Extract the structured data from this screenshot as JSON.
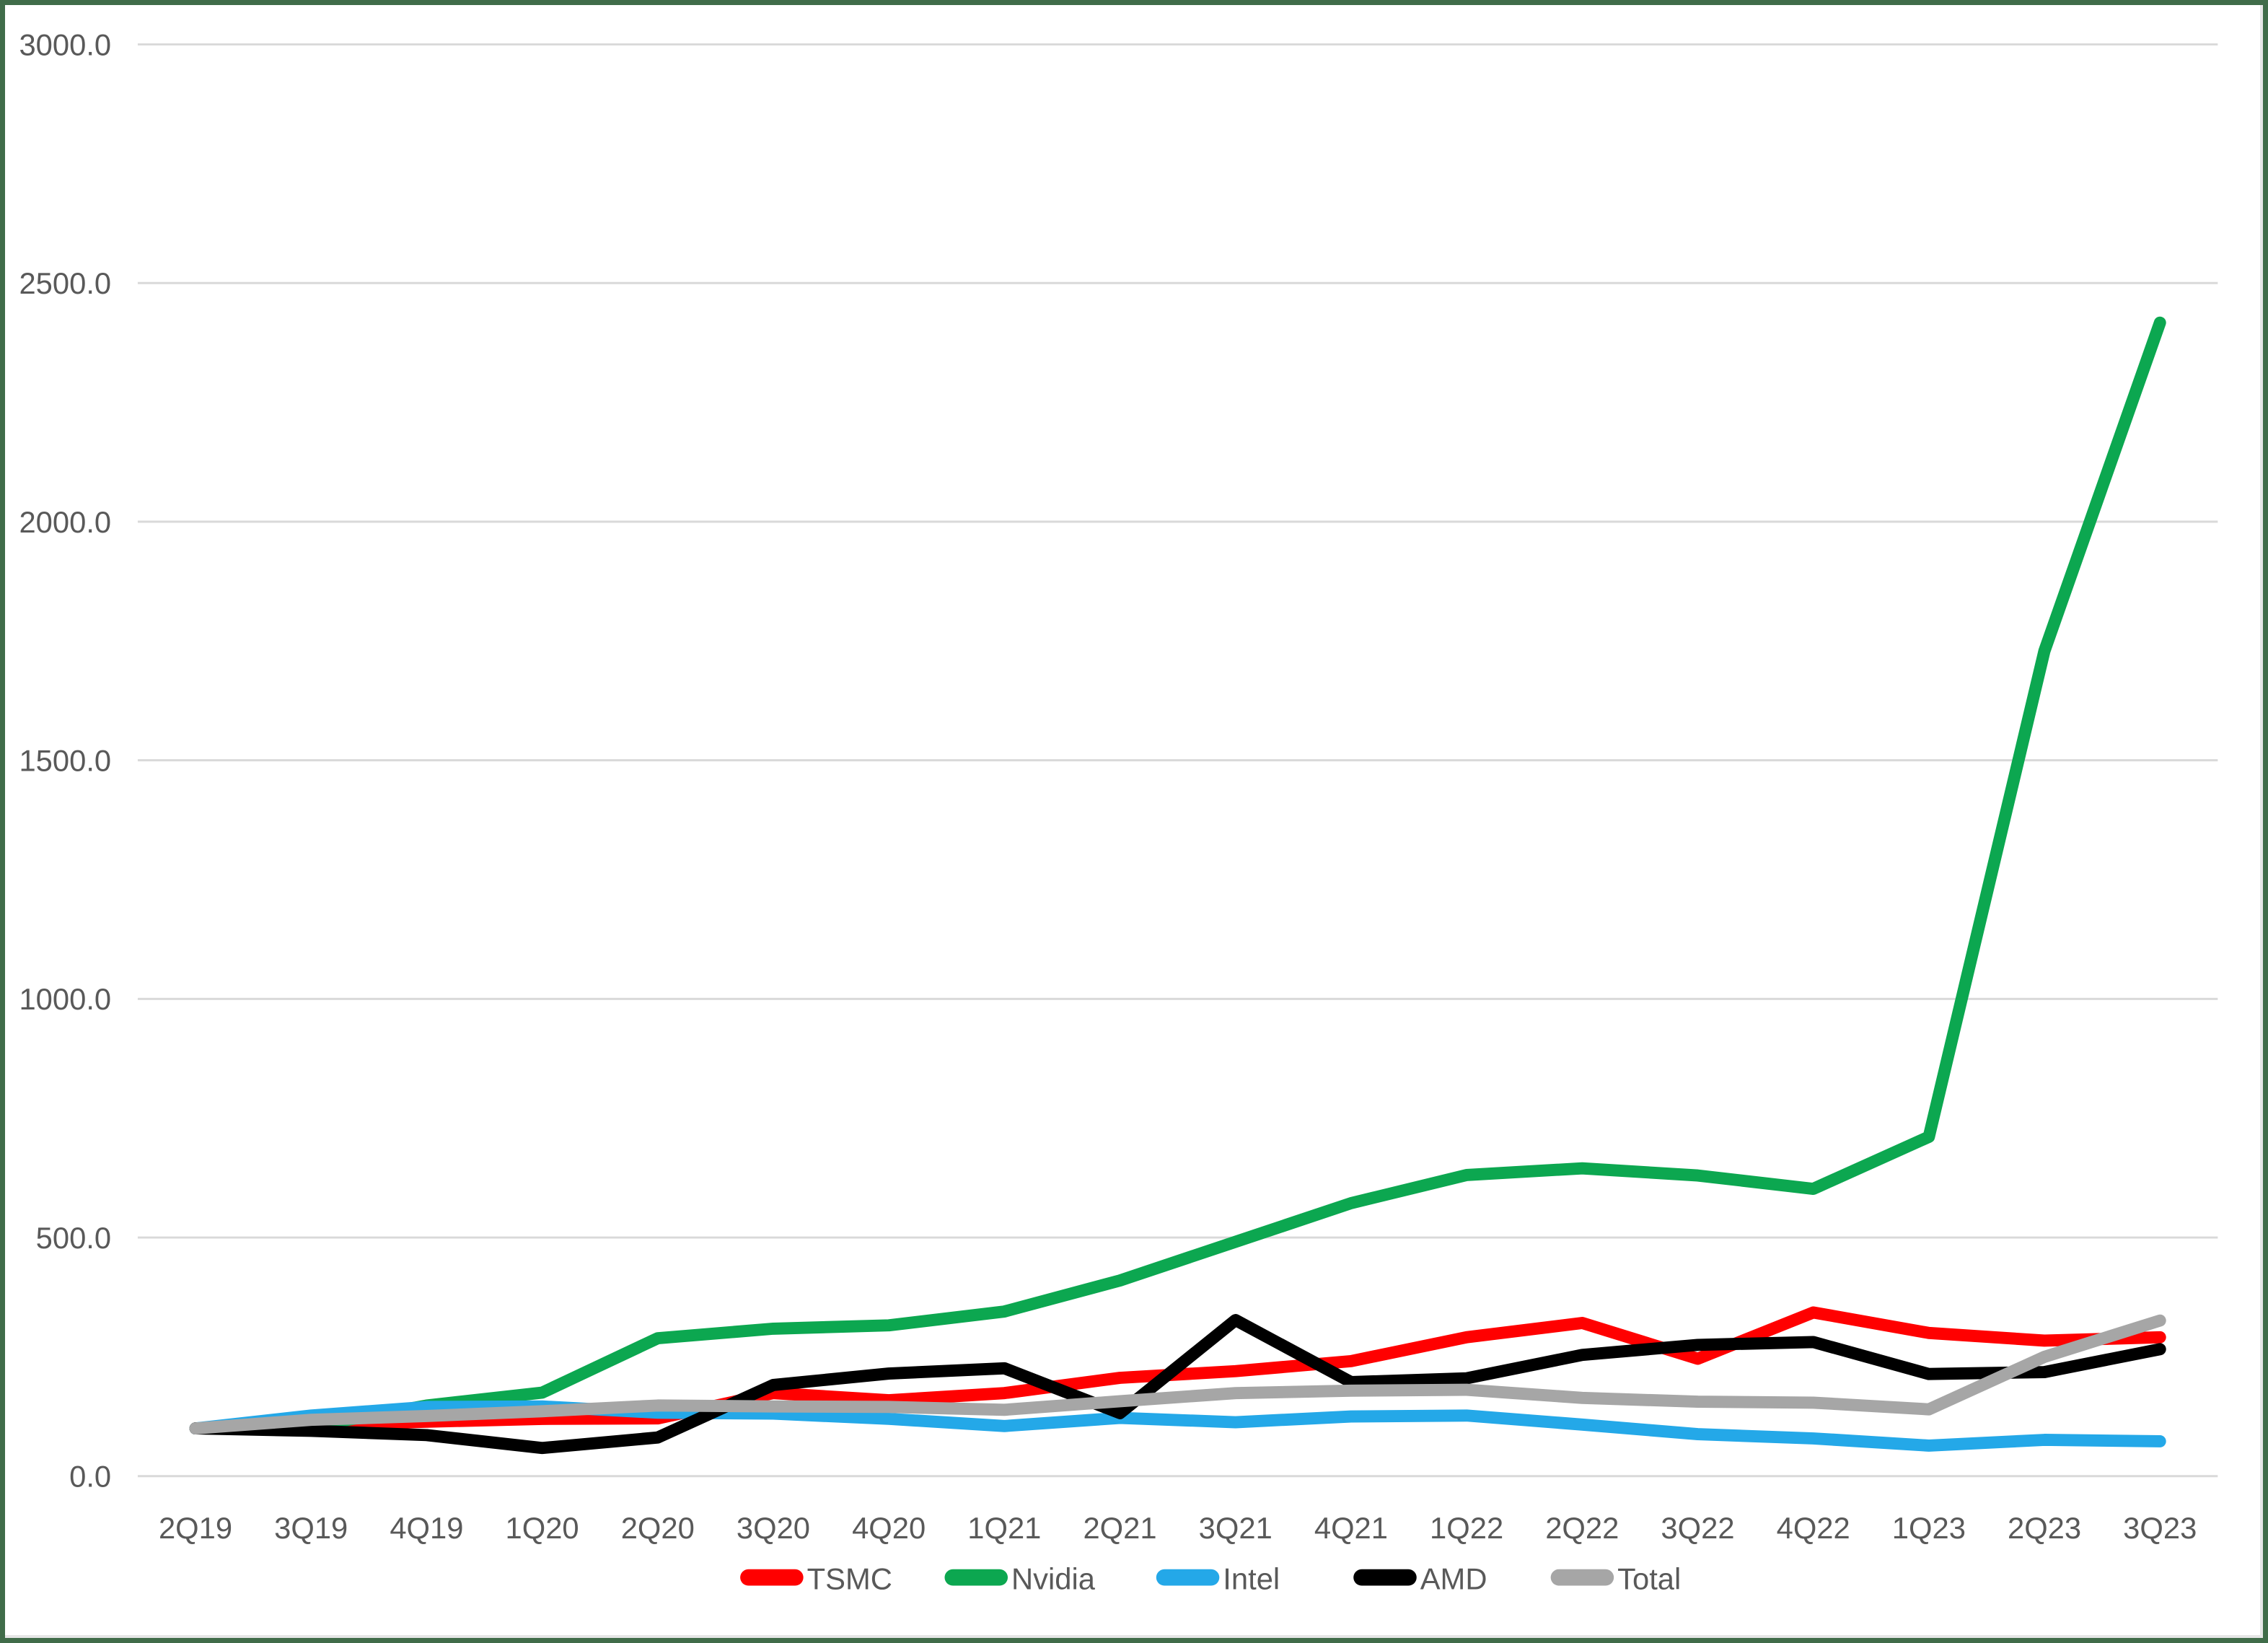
{
  "chart_data": {
    "type": "line",
    "title": "",
    "xlabel": "",
    "ylabel": "",
    "categories": [
      "2Q19",
      "3Q19",
      "4Q19",
      "1Q20",
      "2Q20",
      "3Q20",
      "4Q20",
      "1Q21",
      "2Q21",
      "3Q21",
      "4Q21",
      "1Q22",
      "2Q22",
      "3Q22",
      "4Q22",
      "1Q23",
      "2Q23",
      "3Q23"
    ],
    "series": [
      {
        "name": "TSMC",
        "color": "#FF0000",
        "values": [
          100,
          107,
          114,
          120,
          121,
          174,
          159,
          174,
          206,
          220,
          241,
          291,
          321,
          246,
          343,
          300,
          284,
          291
        ]
      },
      {
        "name": "Nvidia",
        "color": "#0CA750",
        "values": [
          100,
          104,
          148,
          175,
          289,
          309,
          316,
          345,
          410,
          491,
          572,
          631,
          645,
          630,
          602,
          711,
          1729,
          2417
        ]
      },
      {
        "name": "Intel",
        "color": "#24A8E8",
        "values": [
          100,
          127,
          145,
          146,
          133,
          131,
          120,
          105,
          122,
          113,
          125,
          127,
          108,
          88,
          79,
          64,
          76,
          73
        ]
      },
      {
        "name": "AMD",
        "color": "#000000",
        "values": [
          100,
          95,
          86,
          59,
          81,
          191,
          215,
          226,
          132,
          327,
          197,
          205,
          254,
          275,
          281,
          214,
          218,
          266
        ]
      },
      {
        "name": "Total",
        "color": "#A6A6A6",
        "values": [
          100,
          118,
          126,
          136,
          148,
          146,
          145,
          139,
          157,
          174,
          179,
          181,
          164,
          156,
          154,
          140,
          250,
          326
        ]
      }
    ],
    "ylim": [
      0,
      3000
    ],
    "ytick_interval": 500,
    "ytick_labels": [
      "0.0",
      "500.0",
      "1000.0",
      "1500.0",
      "2000.0",
      "2500.0",
      "3000.0"
    ],
    "grid": true,
    "legend_position": "bottom",
    "gridline_color": "#D9D9D9",
    "text_color": "#595959",
    "frame_border_color": "#406C49",
    "line_width": 17
  }
}
